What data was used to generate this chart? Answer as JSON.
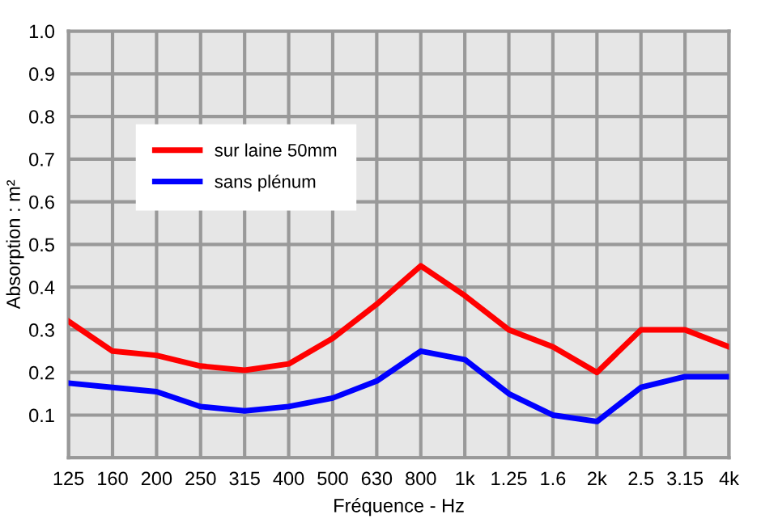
{
  "chart_data": {
    "type": "line",
    "xlabel": "Fréquence - Hz",
    "ylabel": "Absorption : m²",
    "categories": [
      "125",
      "160",
      "200",
      "250",
      "315",
      "400",
      "500",
      "630",
      "800",
      "1k",
      "1.25",
      "1.6",
      "2k",
      "2.5",
      "3.15",
      "4k"
    ],
    "series": [
      {
        "name": "sur laine 50mm",
        "color": "#ff0000",
        "values": [
          0.32,
          0.25,
          0.24,
          0.215,
          0.205,
          0.22,
          0.28,
          0.36,
          0.45,
          0.38,
          0.3,
          0.26,
          0.2,
          0.3,
          0.3,
          0.26
        ]
      },
      {
        "name": "sans plénum",
        "color": "#0000ff",
        "values": [
          0.175,
          0.165,
          0.155,
          0.12,
          0.11,
          0.12,
          0.14,
          0.18,
          0.25,
          0.23,
          0.15,
          0.1,
          0.085,
          0.165,
          0.19,
          0.19
        ]
      }
    ],
    "ylim": [
      0,
      1
    ],
    "yticks": [
      {
        "value": 0,
        "label": null
      },
      0.1,
      0.2,
      0.3,
      0.4,
      0.5,
      0.6,
      0.7,
      0.8,
      0.9,
      {
        "value": 1,
        "label": "1.0"
      }
    ],
    "grid": true,
    "legend": "top left",
    "marker": "none",
    "line_style": "solid"
  }
}
